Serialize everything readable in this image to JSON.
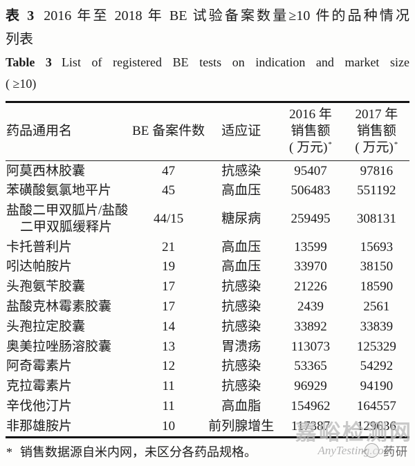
{
  "title": {
    "zh_label": "表 3",
    "zh_line1": "2016 年至 2018 年 BE 试验备案数量≥10 件的品种情况",
    "zh_line2": "列表",
    "en_label": "Table 3",
    "en_line1": "List of registered BE tests on indication and market size",
    "en_line2": "( ≥10)"
  },
  "table": {
    "headers": {
      "drug": "药品通用名",
      "be_count": "BE 备案件数",
      "indication": "适应证",
      "sales_2016": {
        "line1": "2016 年",
        "line2": "销售额",
        "line3": "( 万元)",
        "sup": "*"
      },
      "sales_2017": {
        "line1": "2017 年",
        "line2": "销售额",
        "line3": "( 万元)",
        "sup": "*"
      }
    },
    "rows": [
      {
        "drug": "阿莫西林胶囊",
        "count": "47",
        "indication": "抗感染",
        "sales_2016": "95407",
        "sales_2017": "97816"
      },
      {
        "drug": "苯磺酸氨氯地平片",
        "count": "45",
        "indication": "高血压",
        "sales_2016": "506483",
        "sales_2017": "551192"
      },
      {
        "drug": "盐酸二甲双胍片/盐酸\n二甲双胍缓释片",
        "count": "44/15",
        "indication": "糖尿病",
        "sales_2016": "259495",
        "sales_2017": "308131"
      },
      {
        "drug": "卡托普利片",
        "count": "21",
        "indication": "高血压",
        "sales_2016": "13599",
        "sales_2017": "15693"
      },
      {
        "drug": "吲达帕胺片",
        "count": "19",
        "indication": "高血压",
        "sales_2016": "33970",
        "sales_2017": "38150"
      },
      {
        "drug": "头孢氨苄胶囊",
        "count": "17",
        "indication": "抗感染",
        "sales_2016": "21226",
        "sales_2017": "18590"
      },
      {
        "drug": "盐酸克林霉素胶囊",
        "count": "17",
        "indication": "抗感染",
        "sales_2016": "2439",
        "sales_2017": "2561"
      },
      {
        "drug": "头孢拉定胶囊",
        "count": "14",
        "indication": "抗感染",
        "sales_2016": "33892",
        "sales_2017": "33839"
      },
      {
        "drug": "奥美拉唑肠溶胶囊",
        "count": "13",
        "indication": "胃溃疡",
        "sales_2016": "113073",
        "sales_2017": "125329"
      },
      {
        "drug": "阿奇霉素片",
        "count": "12",
        "indication": "抗感染",
        "sales_2016": "53365",
        "sales_2017": "54292"
      },
      {
        "drug": "克拉霉素片",
        "count": "11",
        "indication": "抗感染",
        "sales_2016": "96929",
        "sales_2017": "94190"
      },
      {
        "drug": "辛伐他汀片",
        "count": "11",
        "indication": "高血脂",
        "sales_2016": "154962",
        "sales_2017": "164557"
      },
      {
        "drug": "非那雄胺片",
        "count": "10",
        "indication": "前列腺增生",
        "sales_2016": "117387",
        "sales_2017": "129636"
      }
    ]
  },
  "footnote": {
    "marker": "*",
    "text": "销售数据源自米内网，未区分各药品规格。"
  },
  "watermark": {
    "site_zh": "嘉峪检测网",
    "site_en": "AnyTesting.com",
    "logo_text": "药研"
  },
  "colors": {
    "text": "#1c1c1c",
    "rule": "#141414",
    "watermark_gray": "#bababa"
  }
}
